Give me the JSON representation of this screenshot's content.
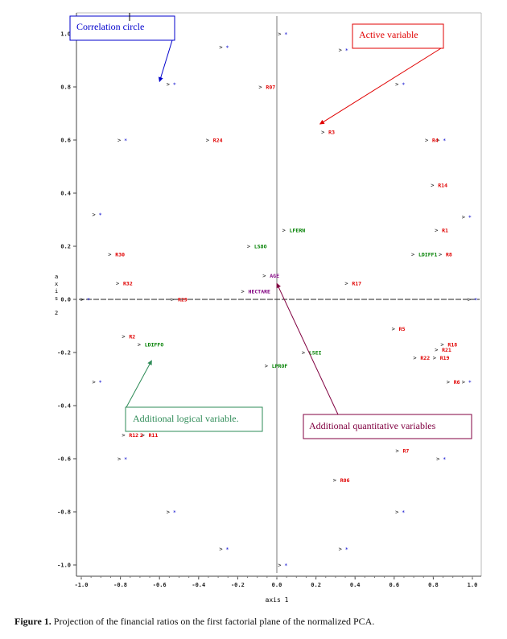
{
  "figure": {
    "caption_label": "Figure 1.",
    "caption_text": " Projection of the financial ratios on the first factorial plane of the normalized PCA."
  },
  "chart_data": {
    "type": "scatter",
    "title": "",
    "xlabel": "axis 1",
    "ylabel": "axis 2",
    "xlim": [
      -1.05,
      1.05
    ],
    "ylim": [
      -1.05,
      1.05
    ],
    "x_ticks": [
      "-1.0",
      "-0.8",
      "-0.6",
      "-0.4",
      "-0.2",
      "0.0",
      "0.2",
      "0.4",
      "0.6",
      "0.8",
      "1.0"
    ],
    "y_ticks": [
      "1.0",
      "0.8",
      "0.6",
      "0.4",
      "0.2",
      "0.0",
      "-0.2",
      "-0.4",
      "-0.6",
      "-0.8",
      "-1.0"
    ],
    "colors": {
      "active": "#e00000",
      "logical": "#008000",
      "quantitative": "#800080",
      "circle": "#0000cc",
      "axis": "#555555"
    },
    "series": [
      {
        "name": "Active variable",
        "points": [
          {
            "label": "R07",
            "x": -0.06,
            "y": 0.8
          },
          {
            "label": "R3",
            "x": 0.26,
            "y": 0.63
          },
          {
            "label": "R24",
            "x": -0.33,
            "y": 0.6
          },
          {
            "label": "R4",
            "x": 0.79,
            "y": 0.6
          },
          {
            "label": "R14",
            "x": 0.82,
            "y": 0.43
          },
          {
            "label": "R1",
            "x": 0.84,
            "y": 0.26
          },
          {
            "label": "R8",
            "x": 0.86,
            "y": 0.17
          },
          {
            "label": "R30",
            "x": -0.83,
            "y": 0.17
          },
          {
            "label": "R32",
            "x": -0.79,
            "y": 0.06
          },
          {
            "label": "R17",
            "x": 0.38,
            "y": 0.06
          },
          {
            "label": "R29",
            "x": -0.51,
            "y": 0.0
          },
          {
            "label": "R2",
            "x": -0.76,
            "y": -0.14
          },
          {
            "label": "R5",
            "x": 0.62,
            "y": -0.11
          },
          {
            "label": "R18",
            "x": 0.87,
            "y": -0.17
          },
          {
            "label": "R21",
            "x": 0.84,
            "y": -0.19
          },
          {
            "label": "R19",
            "x": 0.83,
            "y": -0.22
          },
          {
            "label": "R22",
            "x": 0.73,
            "y": -0.22
          },
          {
            "label": "R6",
            "x": 0.9,
            "y": -0.31
          },
          {
            "label": "R12",
            "x": -0.76,
            "y": -0.51
          },
          {
            "label": "R11",
            "x": -0.66,
            "y": -0.51
          },
          {
            "label": "R7",
            "x": 0.64,
            "y": -0.57
          },
          {
            "label": "R06",
            "x": 0.32,
            "y": -0.68
          }
        ]
      },
      {
        "name": "Additional logical variable.",
        "points": [
          {
            "label": "LFERN",
            "x": 0.06,
            "y": 0.26
          },
          {
            "label": "LS8O",
            "x": -0.12,
            "y": 0.2
          },
          {
            "label": "LDIFF1",
            "x": 0.72,
            "y": 0.17
          },
          {
            "label": "LDIFFO",
            "x": -0.68,
            "y": -0.17
          },
          {
            "label": "LSEI",
            "x": 0.16,
            "y": -0.2
          },
          {
            "label": "LPROF",
            "x": -0.03,
            "y": -0.25
          }
        ]
      },
      {
        "name": "Additional quantitative variables",
        "points": [
          {
            "label": "AGE",
            "x": -0.04,
            "y": 0.09
          },
          {
            "label": "HECTARE",
            "x": -0.15,
            "y": 0.03
          }
        ]
      }
    ],
    "circle_markers": [
      {
        "x": 0.03,
        "y": 1.0
      },
      {
        "x": -0.27,
        "y": 0.95
      },
      {
        "x": 0.34,
        "y": 0.94
      },
      {
        "x": -0.54,
        "y": 0.81
      },
      {
        "x": 0.63,
        "y": 0.81
      },
      {
        "x": -0.79,
        "y": 0.6
      },
      {
        "x": 0.84,
        "y": 0.6
      },
      {
        "x": -0.92,
        "y": 0.32
      },
      {
        "x": 0.97,
        "y": 0.31
      },
      {
        "x": -0.98,
        "y": 0.0
      },
      {
        "x": 1.0,
        "y": 0.0
      },
      {
        "x": -0.92,
        "y": -0.31
      },
      {
        "x": 0.97,
        "y": -0.31
      },
      {
        "x": -0.79,
        "y": -0.6
      },
      {
        "x": 0.84,
        "y": -0.6
      },
      {
        "x": -0.54,
        "y": -0.8
      },
      {
        "x": 0.63,
        "y": -0.8
      },
      {
        "x": -0.27,
        "y": -0.94
      },
      {
        "x": 0.34,
        "y": -0.94
      },
      {
        "x": 0.03,
        "y": -1.0
      }
    ],
    "extra_labels": [
      {
        "text": "2",
        "x": -0.7,
        "y": -0.51,
        "series": "Active variable"
      }
    ],
    "annotations": [
      {
        "id": "circle",
        "text": "Correlation circle",
        "color": "#0000cc",
        "arrow_to": {
          "x": -0.6,
          "y": 0.82
        }
      },
      {
        "id": "active",
        "text": "Active variable",
        "color": "#e00000",
        "arrow_to": {
          "x": 0.22,
          "y": 0.66
        }
      },
      {
        "id": "logical",
        "text": "Additional logical variable.",
        "color": "#2e8b57",
        "arrow_to": {
          "x": -0.64,
          "y": -0.23
        }
      },
      {
        "id": "quant",
        "text": "Additional quantitative variables",
        "color": "#800040",
        "arrow_to": {
          "x": 0.0,
          "y": 0.06
        }
      }
    ],
    "grid": false,
    "legend": "none"
  }
}
